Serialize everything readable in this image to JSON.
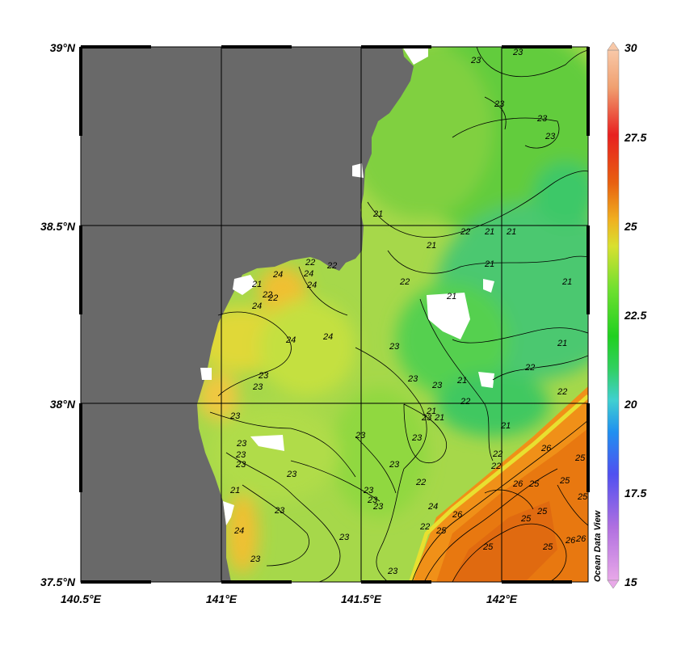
{
  "map": {
    "lat_labels": [
      {
        "text": "39°N",
        "value": 39.0
      },
      {
        "text": "38.5°N",
        "value": 38.5
      },
      {
        "text": "38°N",
        "value": 38.0
      },
      {
        "text": "37.5°N",
        "value": 37.5
      }
    ],
    "lon_labels": [
      {
        "text": "140.5°E",
        "value": 140.5
      },
      {
        "text": "141°E",
        "value": 141.0
      },
      {
        "text": "141.5°E",
        "value": 141.5
      },
      {
        "text": "142°E",
        "value": 142.0
      }
    ],
    "colors": {
      "land": "#696969",
      "nodata": "#ffffff",
      "contour": "#000000"
    }
  },
  "colorbar": {
    "ticks": [
      "30",
      "27.5",
      "25",
      "22.5",
      "20",
      "17.5",
      "15"
    ],
    "min": 15,
    "max": 30,
    "stops": [
      "#e8a8e8",
      "#b070e0",
      "#5050f0",
      "#2090f0",
      "#40d0d0",
      "#30d060",
      "#20d020",
      "#70e030",
      "#d8e030",
      "#f0b020",
      "#e86010",
      "#e82020",
      "#f0a070",
      "#f8c8a8"
    ]
  },
  "contour_labels": [
    "23",
    "22",
    "21",
    "24",
    "25",
    "26"
  ],
  "watermark": "Ocean Data View"
}
